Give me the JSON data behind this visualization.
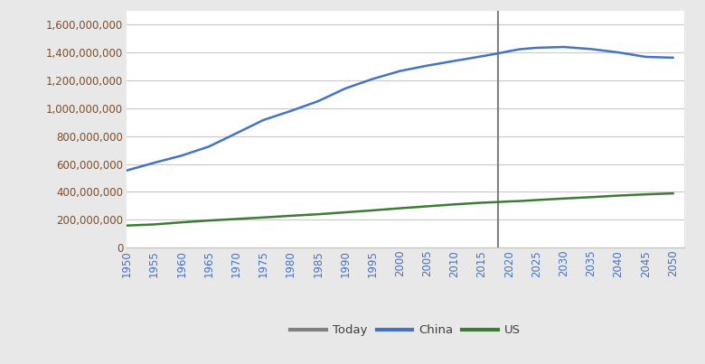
{
  "background_color": "#e8e8e8",
  "plot_bg_color": "#ffffff",
  "today_x": 2018,
  "today_color": "#808080",
  "china_color": "#4472c4",
  "us_color": "#3c7a35",
  "ylim": [
    0,
    1700000000
  ],
  "xlim": [
    1950,
    2052
  ],
  "yticks": [
    0,
    200000000,
    400000000,
    600000000,
    800000000,
    1000000000,
    1200000000,
    1400000000,
    1600000000
  ],
  "xticks": [
    1950,
    1955,
    1960,
    1965,
    1970,
    1975,
    1980,
    1985,
    1990,
    1995,
    2000,
    2005,
    2010,
    2015,
    2020,
    2025,
    2030,
    2035,
    2040,
    2045,
    2050
  ],
  "china_data": {
    "years": [
      1950,
      1955,
      1960,
      1965,
      1970,
      1975,
      1980,
      1985,
      1990,
      1995,
      2000,
      2005,
      2010,
      2015,
      2018,
      2020,
      2022,
      2025,
      2030,
      2035,
      2040,
      2045,
      2050
    ],
    "values": [
      554000000,
      609000000,
      660000000,
      725000000,
      820000000,
      916000000,
      981000000,
      1051000000,
      1143000000,
      1211000000,
      1268000000,
      1307000000,
      1341000000,
      1374000000,
      1395000000,
      1411000000,
      1425000000,
      1435000000,
      1441000000,
      1426000000,
      1402000000,
      1370000000,
      1364000000
    ]
  },
  "us_data": {
    "years": [
      1950,
      1955,
      1960,
      1965,
      1970,
      1975,
      1980,
      1985,
      1990,
      1995,
      2000,
      2005,
      2010,
      2015,
      2018,
      2020,
      2022,
      2025,
      2030,
      2035,
      2040,
      2045,
      2050
    ],
    "values": [
      158000000,
      166000000,
      181000000,
      194000000,
      205000000,
      216000000,
      228000000,
      239000000,
      253000000,
      267000000,
      282000000,
      296000000,
      310000000,
      322000000,
      327000000,
      331000000,
      334000000,
      341000000,
      352000000,
      362000000,
      373000000,
      382000000,
      389000000
    ]
  },
  "legend_entries": [
    "Today",
    "China",
    "US"
  ]
}
